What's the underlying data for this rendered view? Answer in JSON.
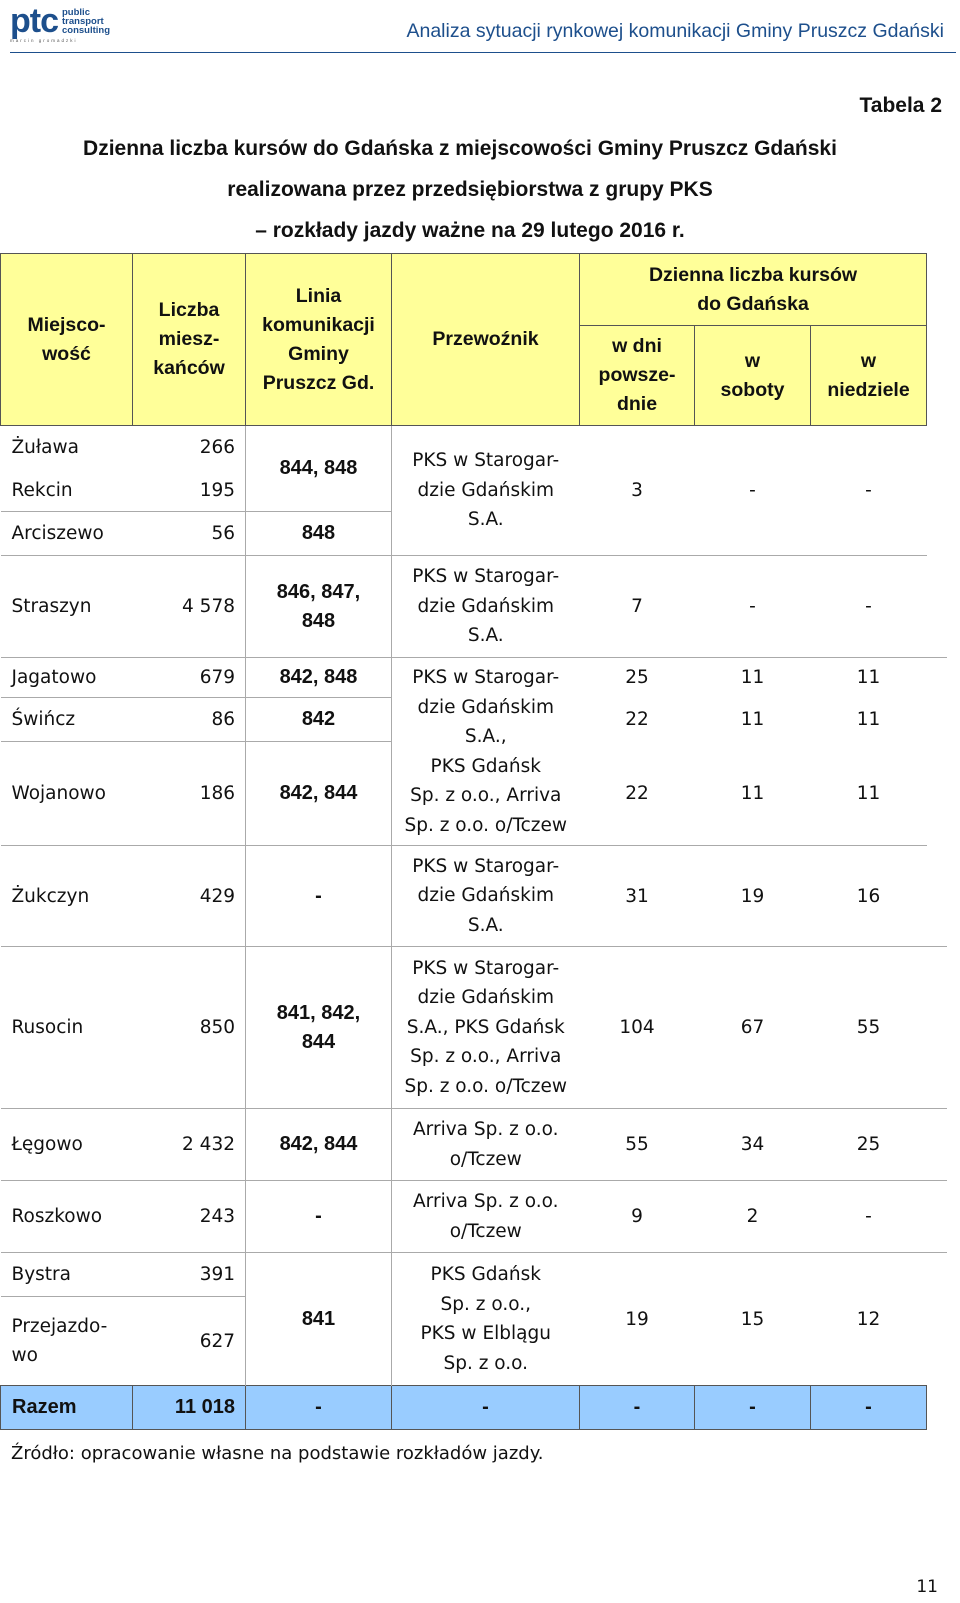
{
  "header": {
    "logo_mark": "ptc",
    "logo_line1": "public",
    "logo_line2": "transport",
    "logo_line3": "consulting",
    "logo_sub": "marcin gromadzki",
    "running_title": "Analiza sytuacji rynkowej komunikacji Gminy Pruszcz Gdański"
  },
  "table_label": "Tabela 2",
  "title": {
    "line1": "Dzienna liczba kursów do Gdańska z miejscowości Gminy Pruszcz Gdański",
    "line2": "realizowana przez przedsiębiorstwa z grupy PKS",
    "line3": "– rozkłady jazdy ważne na 29 lutego 2016 r."
  },
  "columns": {
    "miejscowosc": "Miejsco-\nwość",
    "liczba": "Liczba\nmiesz-\nkańców",
    "linia": "Linia\nkomunikacji\nGminy\nPruszcz Gd.",
    "przewoznik": "Przewoźnik",
    "dzienna": "Dzienna liczba kursów\ndo Gdańska",
    "dni": "w dni\npowsze-\ndnie",
    "soboty": "w\nsoboty",
    "niedziele": "w\nniedziele"
  },
  "rows": {
    "zulawa": {
      "name": "Żuława",
      "pop": "266"
    },
    "rekcin": {
      "name": "Rekcin",
      "pop": "195"
    },
    "arciszewo": {
      "name": "Arciszewo",
      "pop": "56",
      "line": "848"
    },
    "g1": {
      "line": "844, 848",
      "carrier": "PKS w Starogar-\ndzie Gdańskim\nS.A.",
      "d": "3",
      "s": "-",
      "n": "-"
    },
    "straszyn": {
      "name": "Straszyn",
      "pop": "4 578",
      "line": "846, 847,\n848",
      "carrier": "PKS w Starogar-\ndzie Gdańskim\nS.A.",
      "d": "7",
      "s": "-",
      "n": "-"
    },
    "jagatowo": {
      "name": "Jagatowo",
      "pop": "679",
      "line": "842, 848",
      "d": "25",
      "s": "11",
      "n": "11"
    },
    "g3_carrier": "PKS w Starogar-\ndzie Gdańskim\nS.A.,\nPKS Gdańsk\nSp. z o.o., Arriva\nSp. z o.o. o/Tczew",
    "swincz": {
      "name": "Świńcz",
      "pop": "86",
      "line": "842",
      "d": "22",
      "s": "11",
      "n": "11"
    },
    "wojanowo": {
      "name": "Wojanowo",
      "pop": "186",
      "line": "842, 844",
      "d": "22",
      "s": "11",
      "n": "11"
    },
    "zukczyn": {
      "name": "Żukczyn",
      "pop": "429",
      "line": "-",
      "carrier": "PKS w Starogar-\ndzie Gdańskim\nS.A.",
      "d": "31",
      "s": "19",
      "n": "16"
    },
    "rusocin": {
      "name": "Rusocin",
      "pop": "850",
      "line": "841, 842,\n844",
      "carrier": "PKS w Starogar-\ndzie Gdańskim\nS.A., PKS Gdańsk\nSp. z o.o., Arriva\nSp. z o.o. o/Tczew",
      "d": "104",
      "s": "67",
      "n": "55"
    },
    "legowo": {
      "name": "Łęgowo",
      "pop": "2 432",
      "line": "842, 844",
      "carrier": "Arriva Sp. z o.o.\no/Tczew",
      "d": "55",
      "s": "34",
      "n": "25"
    },
    "roszkowo": {
      "name": "Roszkowo",
      "pop": "243",
      "line": "-",
      "carrier": "Arriva Sp. z o.o.\no/Tczew",
      "d": "9",
      "s": "2",
      "n": "-"
    },
    "bystra": {
      "name": "Bystra",
      "pop": "391"
    },
    "przejazdowo": {
      "name": "Przejazdo-\nwo",
      "pop": "627"
    },
    "g8": {
      "line": "841",
      "carrier": "PKS Gdańsk\nSp. z o.o.,\nPKS w Elblągu\nSp. z o.o.",
      "d": "19",
      "s": "15",
      "n": "12"
    }
  },
  "total": {
    "label": "Razem",
    "pop": "11 018",
    "line": "-",
    "carrier": "-",
    "d": "-",
    "s": "-",
    "n": "-"
  },
  "source": "Źródło: opracowanie własne na podstawie rozkładów jazdy.",
  "page_number": "11",
  "colors": {
    "header_bg": "#ffff99",
    "total_bg": "#99ccff",
    "brand": "#1d4f8c"
  }
}
